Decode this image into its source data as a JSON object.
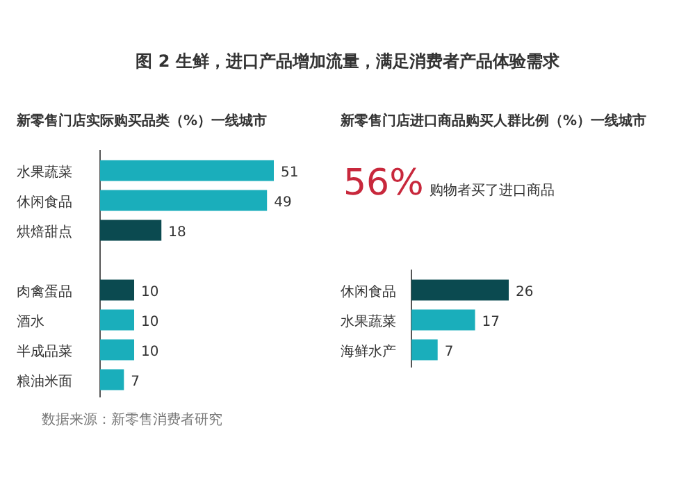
{
  "chart_data": [
    {
      "type": "bar",
      "orientation": "horizontal",
      "title": "图 2  生鲜，进口产品增加流量，满足消费者产品体验需求",
      "subtitle": "新零售门店实际购买品类（%）一线城市",
      "categories": [
        "水果蔬菜",
        "休闲食品",
        "烘焙甜点",
        null,
        "肉禽蛋品",
        "酒水",
        "半成品菜",
        "粮油米面"
      ],
      "values": [
        51,
        49,
        18,
        null,
        10,
        10,
        10,
        7
      ],
      "colors": [
        "#1aaebb",
        "#1aaebb",
        "#0b4a50",
        null,
        "#0b4a50",
        "#1aaebb",
        "#1aaebb",
        "#1aaebb"
      ],
      "data_labels": true,
      "annotations": [
        "数据来源：新零售消费者研究"
      ]
    },
    {
      "type": "bar",
      "orientation": "horizontal",
      "subtitle": "新零售门店进口商品购买人群比例（%）一线城市",
      "categories": [
        "休闲食品",
        "水果蔬菜",
        "海鲜水产"
      ],
      "values": [
        26,
        17,
        7
      ],
      "colors": [
        "#0b4a50",
        "#1aaebb",
        "#1aaebb"
      ],
      "data_labels": true,
      "annotations": [
        "56%",
        "购物者买了进口商品"
      ]
    }
  ]
}
